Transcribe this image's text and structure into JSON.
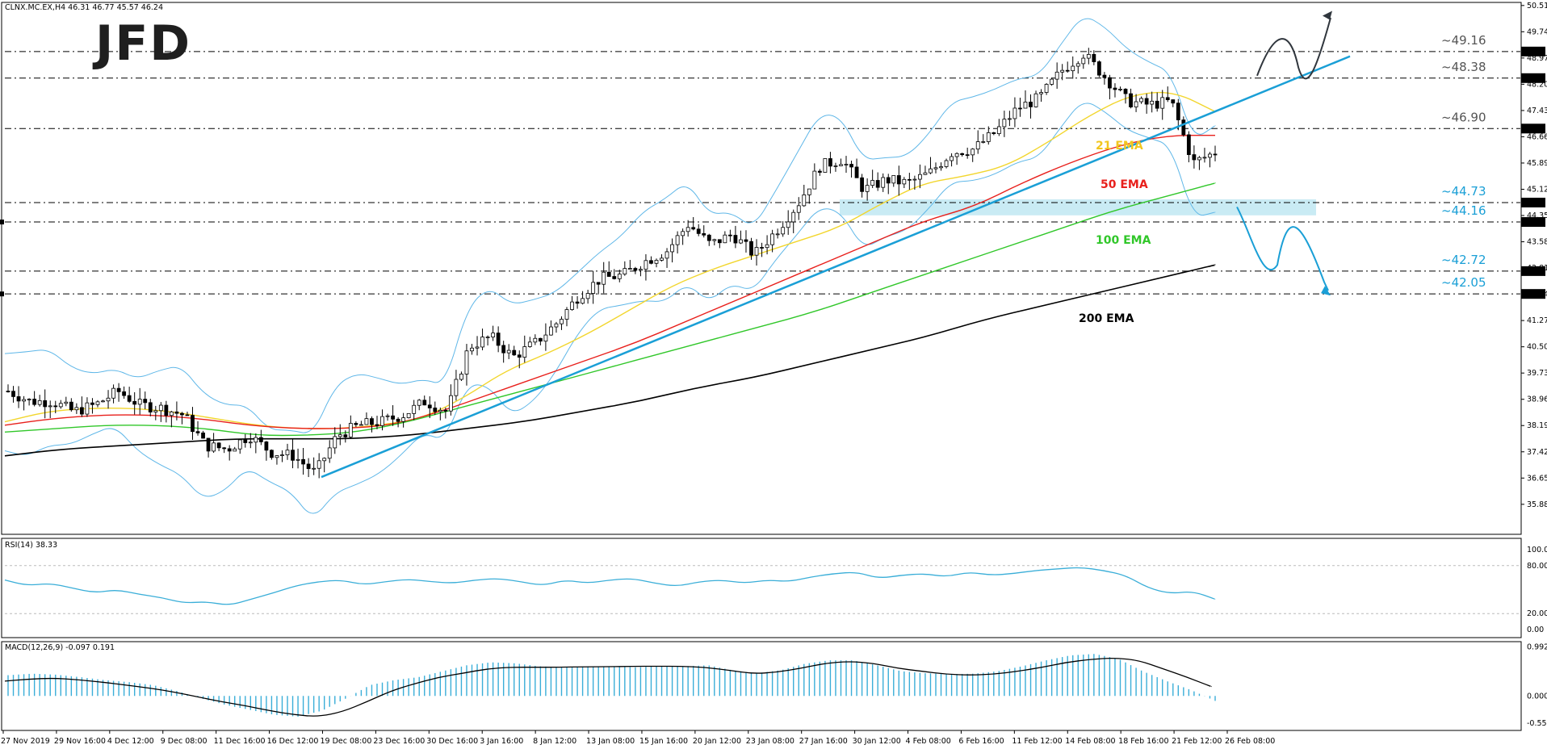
{
  "header": {
    "main": "CLNX.MC.EX,H4  46.31 46.77 45.57 46.24",
    "rsi": "RSI(14) 38.33",
    "macd": "MACD(12,26,9) -0.097 0.191"
  },
  "logo": "JFD",
  "colors": {
    "price": "#000000",
    "ema21": "#f2d62e",
    "ema50": "#e8201c",
    "ema100": "#31c72a",
    "ema200": "#000000",
    "bands": "#5fb7e8",
    "trend": "#1a9fd6",
    "blue_text": "#1a9fd6",
    "zone": "#bfe8f2",
    "grid_dash": "#000000",
    "rsi_line": "#3aaed8",
    "macd_hist": "#3aaed8",
    "macd_signal": "#000000",
    "arrow_up": "#30363d"
  },
  "chart_data": [
    {
      "type": "candlestick",
      "symbol": "CLNX.MC.EX",
      "timeframe": "H4",
      "ohlc_last": {
        "open": 46.31,
        "high": 46.77,
        "low": 45.57,
        "close": 46.24
      },
      "y_range": [
        35.0,
        50.6
      ],
      "y_ticks": [
        50.51,
        49.74,
        48.97,
        48.2,
        47.43,
        46.66,
        45.89,
        45.12,
        44.35,
        43.58,
        42.81,
        42.04,
        41.27,
        40.5,
        39.73,
        38.96,
        38.19,
        37.42,
        36.65,
        35.88
      ],
      "price_tags": [
        49.16,
        48.38,
        46.9,
        44.73,
        44.16,
        42.72,
        42.05
      ],
      "levels": [
        {
          "value": 49.16,
          "label": "~49.16",
          "color": "#555555"
        },
        {
          "value": 48.38,
          "label": "~48.38",
          "color": "#555555"
        },
        {
          "value": 46.9,
          "label": "~46.90",
          "color": "#555555"
        },
        {
          "value": 44.73,
          "label": "~44.73",
          "color": "#1a9fd6"
        },
        {
          "value": 44.16,
          "label": "~44.16",
          "color": "#1a9fd6"
        },
        {
          "value": 42.72,
          "label": "~42.72",
          "color": "#1a9fd6"
        },
        {
          "value": 42.05,
          "label": "~42.05",
          "color": "#1a9fd6"
        }
      ],
      "x_labels": [
        "27 Nov 2019",
        "29 Nov 16:00",
        "4 Dec 12:00",
        "9 Dec 08:00",
        "11 Dec 16:00",
        "16 Dec 12:00",
        "19 Dec 08:00",
        "23 Dec 16:00",
        "30 Dec 16:00",
        "3 Jan 16:00",
        "8 Jan 12:00",
        "13 Jan 08:00",
        "15 Jan 16:00",
        "20 Jan 12:00",
        "23 Jan 08:00",
        "27 Jan 16:00",
        "30 Jan 12:00",
        "4 Feb 08:00",
        "6 Feb 16:00",
        "11 Feb 12:00",
        "14 Feb 08:00",
        "18 Feb 16:00",
        "21 Feb 12:00",
        "26 Feb 08:00"
      ],
      "close_path": [
        39.2,
        38.9,
        38.9,
        38.6,
        38.8,
        39.2,
        38.8,
        38.7,
        38.5,
        37.6,
        37.5,
        37.9,
        37.4,
        37.3,
        36.8,
        37.9,
        38.2,
        38.3,
        38.5,
        38.9,
        38.6,
        40.5,
        40.8,
        40.2,
        40.6,
        41.2,
        42.0,
        42.5,
        42.6,
        43.0,
        43.3,
        44.1,
        43.5,
        43.8,
        43.2,
        43.9,
        44.7,
        45.8,
        46.0,
        45.1,
        45.4,
        45.3,
        45.6,
        46.2,
        46.3,
        46.8,
        47.5,
        47.8,
        48.6,
        49.1,
        48.4,
        47.7,
        47.6,
        47.7,
        45.9,
        46.2
      ],
      "series": [
        {
          "name": "21 EMA",
          "values": [
            38.3,
            38.6,
            38.7,
            38.7,
            38.6,
            38.4,
            38.2,
            38.1,
            38.1,
            38.2,
            38.4,
            39.0,
            39.8,
            40.3,
            40.9,
            41.6,
            42.3,
            42.8,
            43.2,
            43.6,
            44.0,
            44.7,
            45.3,
            45.5,
            45.8,
            46.5,
            47.3,
            47.9,
            48.0,
            47.4
          ]
        },
        {
          "name": "50 EMA",
          "values": [
            38.2,
            38.4,
            38.5,
            38.5,
            38.4,
            38.2,
            38.1,
            38.1,
            38.2,
            38.6,
            39.1,
            39.6,
            40.1,
            40.6,
            41.2,
            41.8,
            42.4,
            43.0,
            43.6,
            44.2,
            44.6,
            45.3,
            45.9,
            46.4,
            46.7,
            46.7
          ]
        },
        {
          "name": "100 EMA",
          "values": [
            38.0,
            38.1,
            38.2,
            38.2,
            38.1,
            37.9,
            37.9,
            38.0,
            38.3,
            38.7,
            39.1,
            39.5,
            39.9,
            40.3,
            40.7,
            41.1,
            41.5,
            42.0,
            42.5,
            43.0,
            43.5,
            44.0,
            44.5,
            44.9,
            45.3
          ]
        },
        {
          "name": "200 EMA",
          "values": [
            37.3,
            37.5,
            37.6,
            37.7,
            37.8,
            37.8,
            37.8,
            37.9,
            38.1,
            38.3,
            38.6,
            38.9,
            39.3,
            39.6,
            40.0,
            40.4,
            40.8,
            41.3,
            41.7,
            42.1,
            42.5,
            42.9
          ]
        }
      ],
      "annotations": [
        "21 EMA",
        "50 EMA",
        "100 EMA",
        "200 EMA"
      ]
    },
    {
      "type": "line",
      "name": "RSI(14)",
      "value": 38.33,
      "y_range": [
        0,
        100
      ],
      "y_ticks": [
        "100.00",
        "80.00",
        "20.00",
        "0.00"
      ],
      "values": [
        62,
        55,
        58,
        52,
        46,
        50,
        44,
        40,
        33,
        35,
        30,
        38,
        46,
        55,
        60,
        62,
        56,
        60,
        63,
        60,
        58,
        62,
        64,
        60,
        55,
        62,
        58,
        62,
        64,
        58,
        54,
        60,
        62,
        58,
        62,
        60,
        66,
        70,
        72,
        64,
        68,
        70,
        66,
        72,
        68,
        70,
        74,
        76,
        78,
        74,
        68,
        52,
        45,
        48,
        38
      ]
    },
    {
      "type": "bar",
      "name": "MACD(12,26,9)",
      "macd": -0.097,
      "signal": 0.191,
      "y_ticks": [
        "0.992",
        "0.000",
        "-0.552"
      ],
      "y_range": [
        -0.6,
        1.0
      ],
      "hist": [
        0.42,
        0.45,
        0.43,
        0.38,
        0.32,
        0.28,
        0.22,
        0.1,
        -0.05,
        -0.18,
        -0.28,
        -0.38,
        -0.42,
        -0.3,
        -0.05,
        0.22,
        0.32,
        0.38,
        0.5,
        0.62,
        0.68,
        0.66,
        0.6,
        0.58,
        0.6,
        0.6,
        0.58,
        0.6,
        0.6,
        0.62,
        0.52,
        0.46,
        0.52,
        0.65,
        0.72,
        0.72,
        0.62,
        0.5,
        0.46,
        0.44,
        0.45,
        0.5,
        0.6,
        0.72,
        0.82,
        0.85,
        0.75,
        0.5,
        0.3,
        0.12,
        -0.1
      ],
      "signal_path": [
        0.3,
        0.34,
        0.36,
        0.33,
        0.28,
        0.22,
        0.16,
        0.08,
        -0.02,
        -0.12,
        -0.2,
        -0.3,
        -0.38,
        -0.42,
        -0.32,
        -0.12,
        0.1,
        0.25,
        0.38,
        0.46,
        0.55,
        0.58,
        0.58,
        0.58,
        0.59,
        0.59,
        0.6,
        0.6,
        0.6,
        0.58,
        0.52,
        0.45,
        0.48,
        0.56,
        0.66,
        0.7,
        0.66,
        0.56,
        0.5,
        0.44,
        0.42,
        0.44,
        0.5,
        0.58,
        0.68,
        0.74,
        0.77,
        0.72,
        0.55,
        0.38,
        0.19
      ]
    }
  ]
}
